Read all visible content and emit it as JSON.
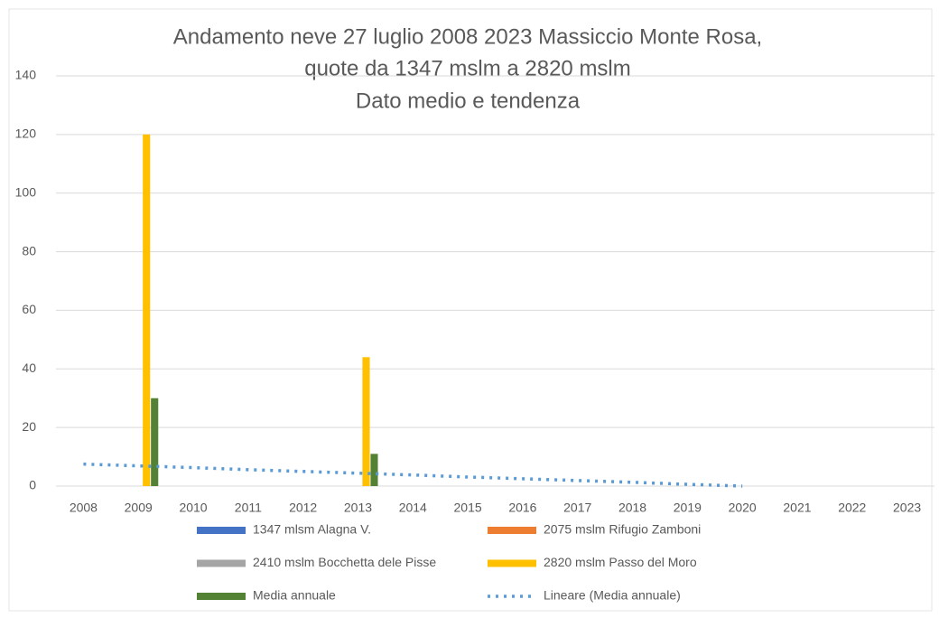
{
  "chart_data": {
    "type": "bar",
    "title": [
      "Andamento neve 27 luglio 2008 2023 Massiccio Monte Rosa,",
      "quote da 1347 mslm a 2820 mslm",
      "Dato medio e tendenza"
    ],
    "categories": [
      "2008",
      "2009",
      "2010",
      "2011",
      "2012",
      "2013",
      "2014",
      "2015",
      "2016",
      "2017",
      "2018",
      "2019",
      "2020",
      "2021",
      "2022",
      "2023"
    ],
    "series": [
      {
        "name": "1347 mlsm Alagna V.",
        "color": "#4472c4",
        "values": [
          null,
          null,
          null,
          null,
          null,
          null,
          null,
          null,
          null,
          null,
          null,
          null,
          null,
          null,
          null,
          null
        ]
      },
      {
        "name": "2075 mslm Rifugio Zamboni",
        "color": "#ed7d31",
        "values": [
          null,
          null,
          null,
          null,
          null,
          null,
          null,
          null,
          null,
          null,
          null,
          null,
          null,
          null,
          null,
          null
        ]
      },
      {
        "name": "2410 mslm Bocchetta dele Pisse",
        "color": "#a5a5a5",
        "values": [
          null,
          null,
          null,
          null,
          null,
          null,
          null,
          null,
          null,
          null,
          null,
          null,
          null,
          null,
          null,
          null
        ]
      },
      {
        "name": "2820 mslm Passo del Moro",
        "color": "#ffc000",
        "values": [
          null,
          120,
          null,
          null,
          null,
          44,
          null,
          null,
          null,
          null,
          null,
          null,
          null,
          null,
          null,
          null
        ]
      },
      {
        "name": "Media annuale",
        "color": "#548235",
        "values": [
          null,
          30,
          null,
          null,
          null,
          11,
          null,
          null,
          null,
          null,
          null,
          null,
          null,
          null,
          null,
          null
        ]
      },
      {
        "name": "Lineare (Media annuale)",
        "color": "#5b9bd5",
        "type": "line",
        "dash": "dotted",
        "values": [
          7.5,
          6.9,
          6.3,
          5.6,
          5,
          4.4,
          3.8,
          3.1,
          2.5,
          1.9,
          1.3,
          0.6,
          0,
          null,
          null,
          null
        ]
      }
    ],
    "ylim": [
      0,
      140
    ],
    "yticks": [
      0,
      20,
      40,
      60,
      80,
      100,
      120,
      140
    ],
    "grid": true
  }
}
